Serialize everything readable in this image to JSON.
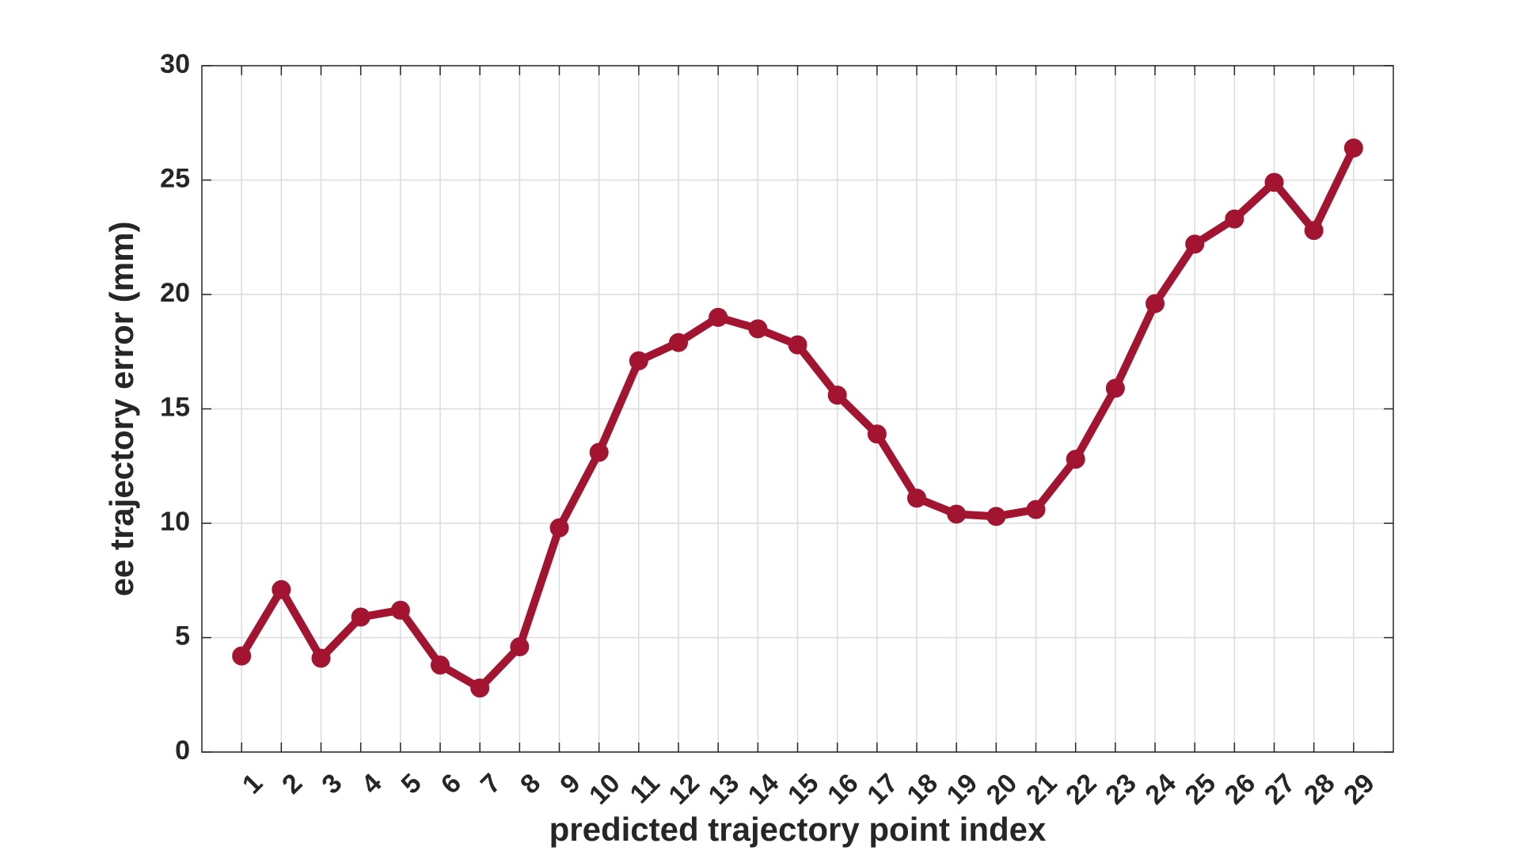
{
  "chart_data": {
    "type": "line",
    "xlabel": "predicted trajectory point index",
    "ylabel": "ee trajectory error (mm)",
    "x": [
      1,
      2,
      3,
      4,
      5,
      6,
      7,
      8,
      9,
      10,
      11,
      12,
      13,
      14,
      15,
      16,
      17,
      18,
      19,
      20,
      21,
      22,
      23,
      24,
      25,
      26,
      27,
      28,
      29
    ],
    "x_tick_labels": [
      "1",
      "2",
      "3",
      "4",
      "5",
      "6",
      "7",
      "8",
      "9",
      "10",
      "11",
      "12",
      "13",
      "14",
      "15",
      "16",
      "17",
      "18",
      "19",
      "20",
      "21",
      "22",
      "23",
      "24",
      "25",
      "26",
      "27",
      "28",
      "29"
    ],
    "series": [
      {
        "color": "#A2142F",
        "marker": "circle",
        "values": [
          4.2,
          7.1,
          4.1,
          5.9,
          6.2,
          3.8,
          2.8,
          4.6,
          9.8,
          13.1,
          17.1,
          17.9,
          19.0,
          18.5,
          17.8,
          15.6,
          13.9,
          11.1,
          10.4,
          10.3,
          10.6,
          12.8,
          15.9,
          19.6,
          22.2,
          23.3,
          24.9,
          22.8,
          26.4
        ]
      }
    ],
    "xlim": [
      0,
      30
    ],
    "ylim": [
      0,
      30
    ],
    "y_ticks": [
      0,
      5,
      10,
      15,
      20,
      25,
      30
    ],
    "y_tick_labels": [
      "0",
      "5",
      "10",
      "15",
      "20",
      "25",
      "30"
    ],
    "grid": true,
    "legend": "none"
  }
}
